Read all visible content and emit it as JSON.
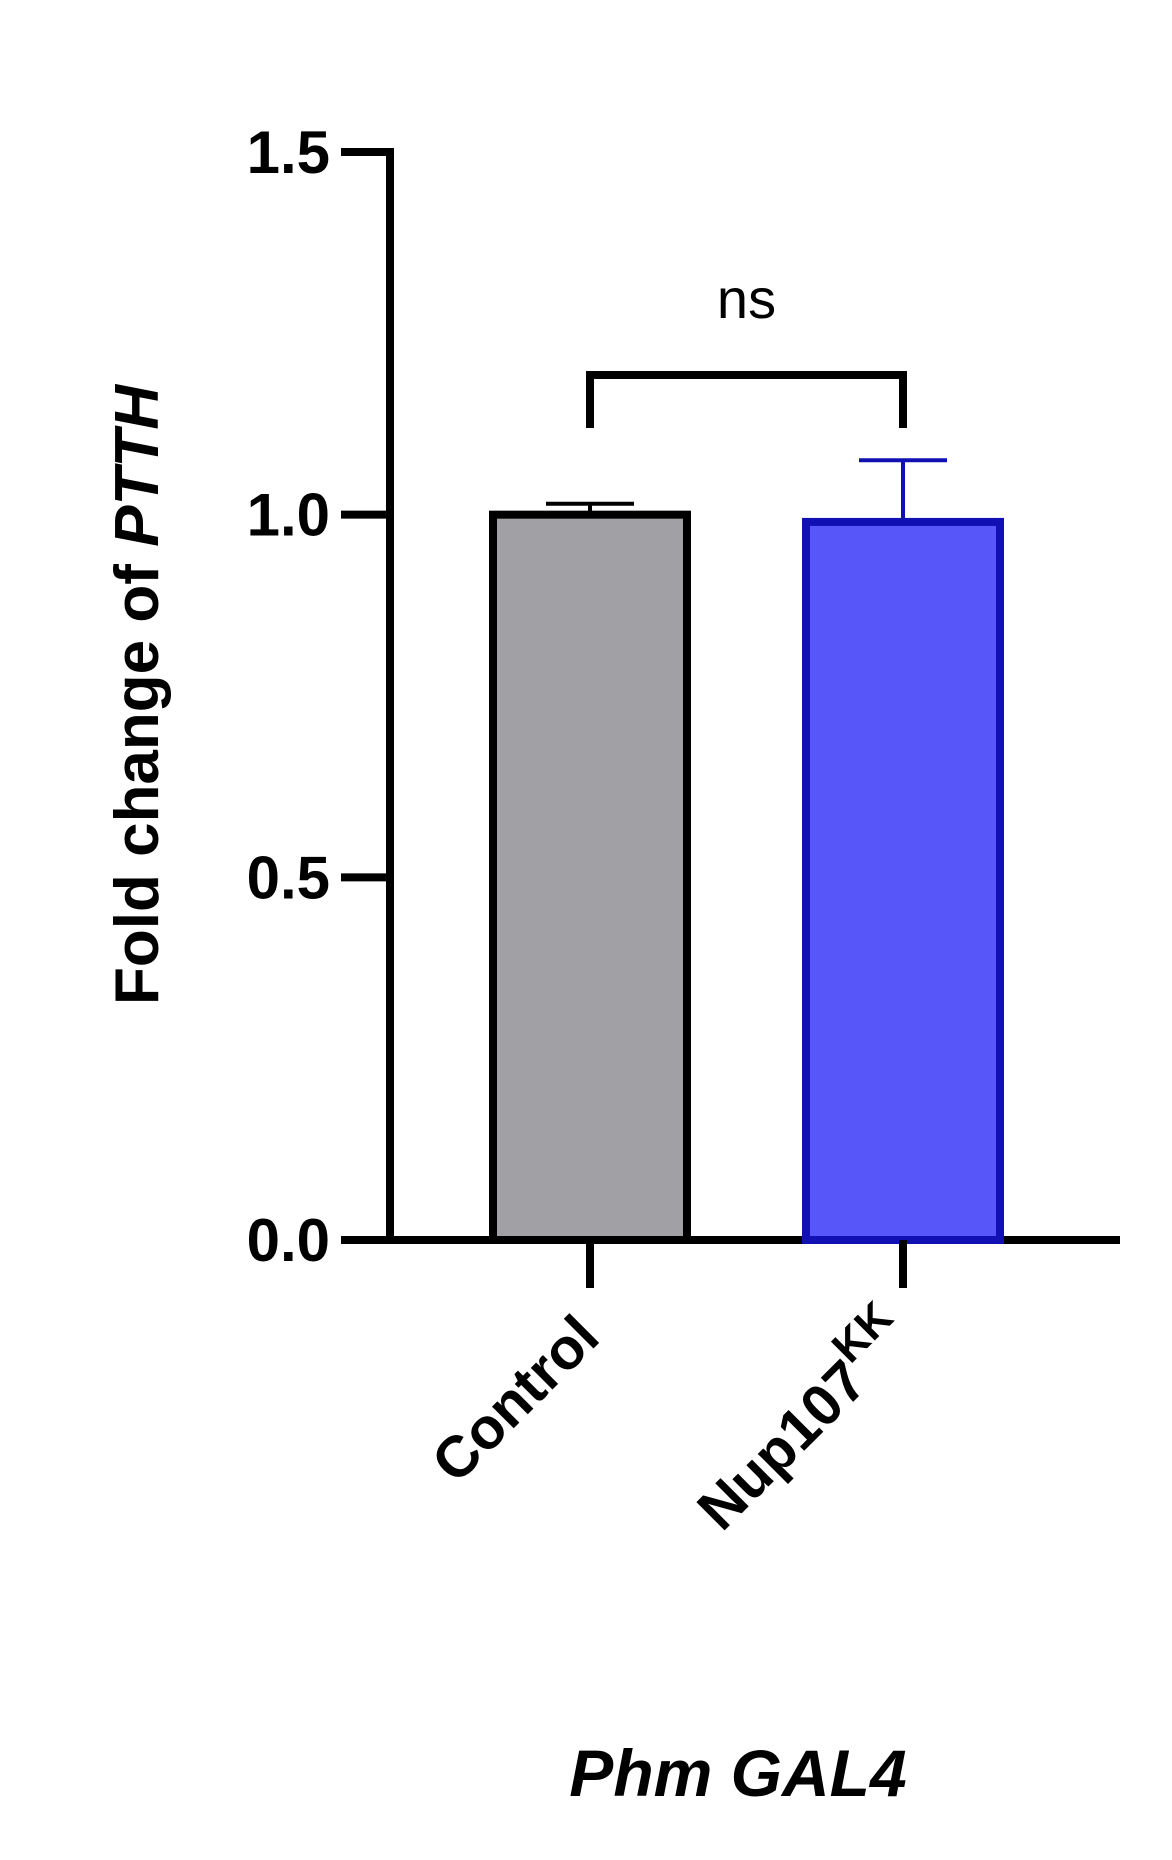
{
  "chart_data": {
    "type": "bar",
    "ylabel_parts": [
      "Fold change of ",
      "PTTH"
    ],
    "yticks": [
      "0.0",
      "0.5",
      "1.0",
      "1.5"
    ],
    "ylim": [
      0,
      1.5
    ],
    "categories": [
      {
        "name": "Control",
        "sup": ""
      },
      {
        "name": "Nup107",
        "sup": "KK"
      }
    ],
    "values": [
      1.0,
      0.99
    ],
    "errors": [
      0.015,
      0.085
    ],
    "fill_colors": [
      "#a0a0a5",
      "#5757f9"
    ],
    "edge_colors": [
      "#000000",
      "#1111b3"
    ],
    "significance": {
      "label": "ns",
      "between": [
        0,
        1
      ]
    },
    "group_label": "Phm GAL4",
    "grid": false,
    "legend": "none"
  }
}
